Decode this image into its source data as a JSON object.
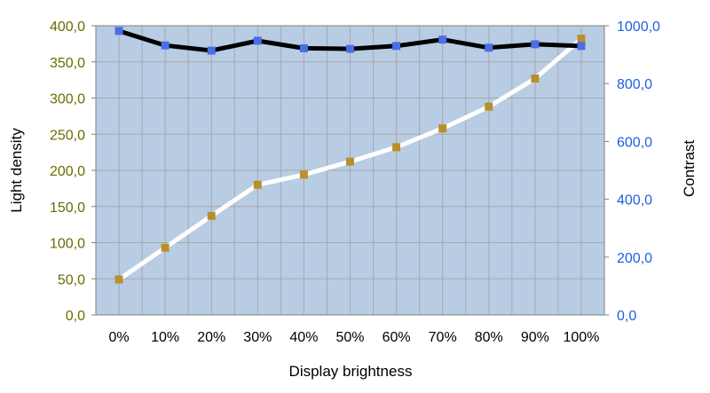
{
  "chart_data": {
    "type": "line",
    "title": "",
    "xlabel": "Display brightness",
    "ylabel_left": "Light density",
    "ylabel_right": "Contrast",
    "categories": [
      "0%",
      "10%",
      "20%",
      "30%",
      "40%",
      "50%",
      "60%",
      "70%",
      "80%",
      "90%",
      "100%"
    ],
    "y_left": {
      "min": 0,
      "max": 400,
      "step": 50,
      "tick_labels": [
        "0,0",
        "50,0",
        "100,0",
        "150,0",
        "200,0",
        "250,0",
        "300,0",
        "350,0",
        "400,0"
      ]
    },
    "y_right": {
      "min": 0,
      "max": 1000,
      "step": 200,
      "tick_labels": [
        "0,0",
        "200,0",
        "400,0",
        "600,0",
        "800,0",
        "1000,0"
      ]
    },
    "grid": true,
    "legend": "none",
    "series": [
      {
        "axis": "left",
        "values": [
          49,
          93,
          137,
          180,
          194,
          212,
          232,
          258,
          288,
          327,
          382
        ],
        "line_color": "#ffffff",
        "marker_color": "#b8902a"
      },
      {
        "axis": "right",
        "values": [
          982,
          932,
          914,
          948,
          922,
          920,
          930,
          952,
          924,
          936,
          930
        ],
        "line_color": "#000000",
        "marker_color": "#4a6ee8"
      }
    ],
    "colors": {
      "plot_background": "#b8cce4",
      "grid_line": "#a8a8a8",
      "left_tick_text": "#6b6b00",
      "right_tick_text": "#1f5fe0"
    }
  }
}
